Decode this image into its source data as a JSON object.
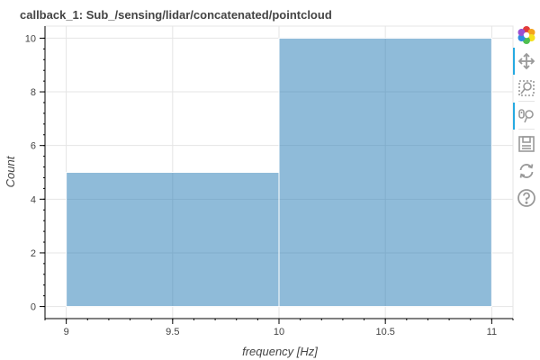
{
  "chart_data": {
    "type": "bar",
    "title": "callback_1: Sub_/sensing/lidar/concatenated/pointcloud",
    "xlabel": "frequency [Hz]",
    "ylabel": "Count",
    "bins": [
      {
        "x0": 9,
        "x1": 10,
        "value": 5
      },
      {
        "x0": 10,
        "x1": 11,
        "value": 10
      }
    ],
    "xlim": [
      8.9,
      11.1
    ],
    "ylim": [
      -0.45,
      10.45
    ],
    "xticks": [
      "9",
      "9.5",
      "10",
      "10.5",
      "11"
    ],
    "yticks": [
      "0",
      "2",
      "4",
      "6",
      "8",
      "10"
    ],
    "grid": true,
    "bar_color": "#1f77b4",
    "bar_opacity": 0.5
  },
  "toolbar": {
    "tools": [
      {
        "name": "bokeh-logo-icon",
        "title": "Bokeh"
      },
      {
        "name": "pan-icon",
        "title": "Pan",
        "active": true
      },
      {
        "name": "box-zoom-icon",
        "title": "Box Zoom"
      },
      {
        "name": "wheel-zoom-icon",
        "title": "Wheel Zoom",
        "active": true
      },
      {
        "name": "save-icon",
        "title": "Save"
      },
      {
        "name": "reset-icon",
        "title": "Reset"
      },
      {
        "name": "help-icon",
        "title": "Help"
      }
    ]
  }
}
